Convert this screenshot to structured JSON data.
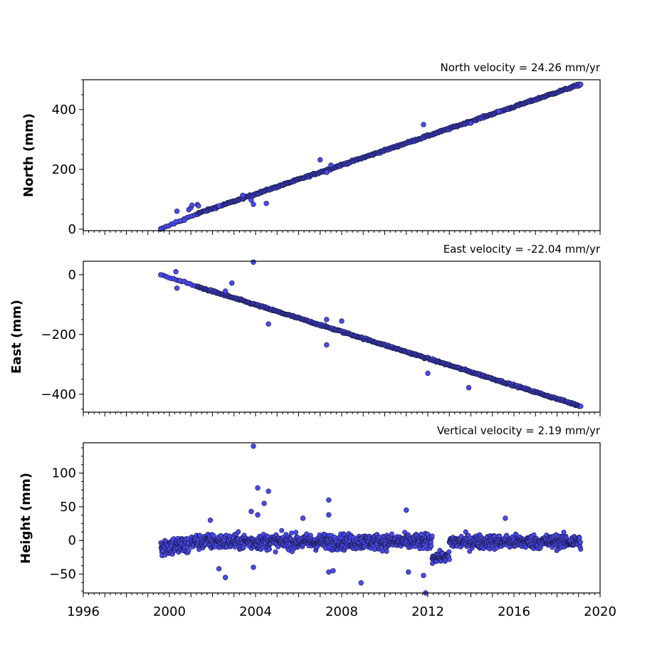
{
  "chart_data": [
    {
      "type": "scatter",
      "title": "North velocity = 24.26 mm/yr",
      "ylabel": "North (mm)",
      "xlim": [
        1996,
        2020
      ],
      "ylim": [
        -5,
        500
      ],
      "yticks": [
        0,
        200,
        400
      ],
      "ytick_labels": [
        "0",
        "200",
        "400"
      ],
      "xtick_labels": [],
      "velocity_mm_per_yr": 24.26,
      "trend": [
        [
          1999.6,
          0
        ],
        [
          2001.3,
          52
        ],
        [
          2019.1,
          485
        ]
      ],
      "points": [
        [
          1999.6,
          0
        ],
        [
          2000.2,
          18
        ],
        [
          2000.3,
          25
        ],
        [
          2000.35,
          60
        ],
        [
          2000.5,
          28
        ],
        [
          2000.7,
          30
        ],
        [
          2000.9,
          65
        ],
        [
          2001.0,
          72
        ],
        [
          2001.05,
          80
        ],
        [
          2001.3,
          82
        ],
        [
          2001.35,
          78
        ],
        [
          2002.3,
          78
        ],
        [
          2003.4,
          113
        ],
        [
          2003.8,
          97
        ],
        [
          2003.9,
          83
        ],
        [
          2004.5,
          86
        ],
        [
          2007.0,
          232
        ],
        [
          2007.3,
          190
        ],
        [
          2007.5,
          214
        ],
        [
          2011.8,
          350
        ],
        [
          2014.0,
          355
        ],
        [
          2015.3,
          394
        ]
      ],
      "series": [
        {
          "name": "",
          "color": "#4a4af0"
        }
      ]
    },
    {
      "type": "scatter",
      "title": "East velocity = -22.04 mm/yr",
      "ylabel": "East (mm)",
      "xlim": [
        1996,
        2020
      ],
      "ylim": [
        -460,
        45
      ],
      "yticks": [
        0,
        -200,
        -400
      ],
      "ytick_labels": [
        "0",
        "−200",
        "−400"
      ],
      "xtick_labels": [],
      "velocity_mm_per_yr": -22.04,
      "trend": [
        [
          1999.6,
          0
        ],
        [
          2001.3,
          -40
        ],
        [
          2019.1,
          -440
        ]
      ],
      "points": [
        [
          1999.6,
          0
        ],
        [
          2000.3,
          10
        ],
        [
          2000.35,
          -45
        ],
        [
          2000.5,
          -20
        ],
        [
          2002.6,
          -55
        ],
        [
          2002.9,
          -28
        ],
        [
          2003.9,
          42
        ],
        [
          2004.6,
          -165
        ],
        [
          2007.3,
          -150
        ],
        [
          2007.3,
          -235
        ],
        [
          2008.0,
          -155
        ],
        [
          2012.0,
          -330
        ],
        [
          2013.9,
          -378
        ]
      ],
      "series": [
        {
          "name": "",
          "color": "#4a4af0"
        }
      ]
    },
    {
      "type": "scatter",
      "title": "Vertical velocity = 2.19 mm/yr",
      "ylabel": "Height (mm)",
      "xlabel": "",
      "xlim": [
        1996,
        2020
      ],
      "ylim": [
        -78,
        145
      ],
      "yticks": [
        100,
        50,
        0,
        -50
      ],
      "ytick_labels": [
        "100",
        "50",
        "0",
        "−50"
      ],
      "xticks": [
        1996,
        2000,
        2004,
        2008,
        2012,
        2016,
        2020
      ],
      "xtick_labels": [
        "1996",
        "2000",
        "2004",
        "2008",
        "2012",
        "2016",
        "2020"
      ],
      "velocity_mm_per_yr": 2.19,
      "points": [
        [
          2003.9,
          140
        ],
        [
          2004.1,
          78
        ],
        [
          2004.6,
          73
        ],
        [
          2004.4,
          55
        ],
        [
          2003.8,
          43
        ],
        [
          2004.1,
          38
        ],
        [
          2007.4,
          60
        ],
        [
          2007.4,
          38
        ],
        [
          2011.0,
          45
        ],
        [
          2015.6,
          33
        ],
        [
          2001.9,
          30
        ],
        [
          2006.2,
          33
        ],
        [
          2002.6,
          -55
        ],
        [
          2008.9,
          -63
        ],
        [
          2011.1,
          -47
        ],
        [
          2011.8,
          -52
        ],
        [
          2011.9,
          -78
        ],
        [
          2007.4,
          -47
        ],
        [
          2007.6,
          -45
        ],
        [
          2002.3,
          -42
        ],
        [
          2003.9,
          -40
        ]
      ],
      "segments": [
        {
          "x0": 1999.6,
          "x1": 2000.9,
          "mean": -8,
          "spread": 14
        },
        {
          "x0": 2001.0,
          "x1": 2012.2,
          "mean": -2,
          "spread": 11
        },
        {
          "x0": 2012.2,
          "x1": 2013.0,
          "mean": -25,
          "spread": 7
        },
        {
          "x0": 2013.0,
          "x1": 2019.1,
          "mean": -2,
          "spread": 10
        }
      ],
      "series": [
        {
          "name": "",
          "color": "#4a4af0"
        }
      ]
    }
  ]
}
